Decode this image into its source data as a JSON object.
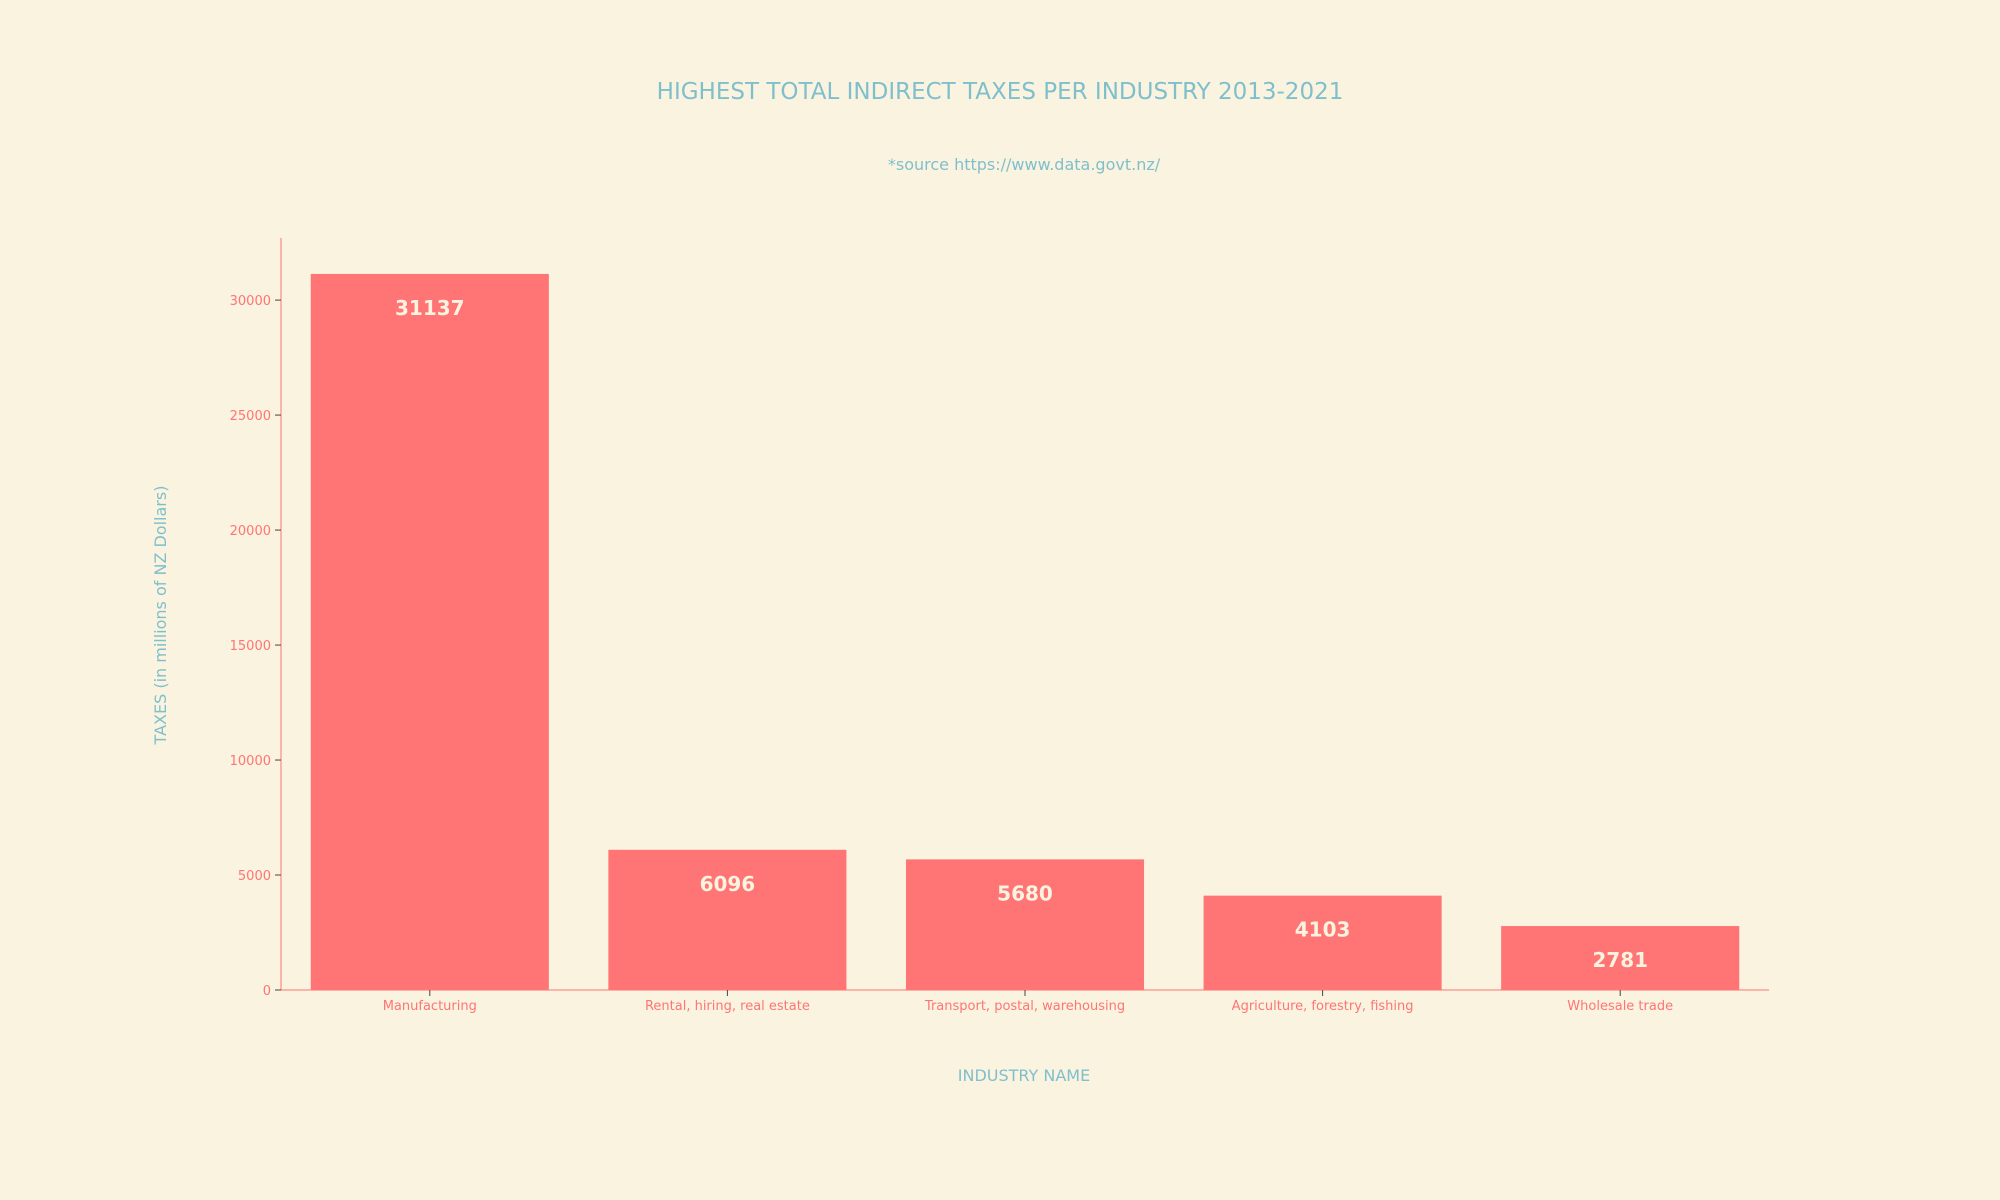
{
  "chart_data": {
    "type": "bar",
    "title": "HIGHEST TOTAL INDIRECT TAXES PER INDUSTRY 2013-2021",
    "subtitle": "*source https://www.data.govt.nz/",
    "xlabel": "INDUSTRY NAME",
    "ylabel": "TAXES (in millions of NZ Dollars)",
    "categories": [
      "Manufacturing",
      "Rental, hiring, real estate",
      "Transport, postal, warehousing",
      "Agriculture, forestry, fishing",
      "Wholesale trade"
    ],
    "values": [
      31137,
      6096,
      5680,
      4103,
      2781
    ],
    "value_labels": [
      "31137",
      "6096",
      "5680",
      "4103",
      "2781"
    ],
    "ylim": [
      0,
      32700
    ],
    "yticks": [
      0,
      5000,
      10000,
      15000,
      20000,
      25000,
      30000
    ],
    "ytick_labels": [
      "0",
      "5000",
      "10000",
      "15000",
      "20000",
      "25000",
      "30000"
    ],
    "grid": false,
    "legend": "none",
    "colors": {
      "background": "#faf3e0",
      "bar": "#ff7575",
      "axis": "#ff7575",
      "text_accent": "#7fbfcc",
      "bar_label": "#faf3e0"
    }
  }
}
